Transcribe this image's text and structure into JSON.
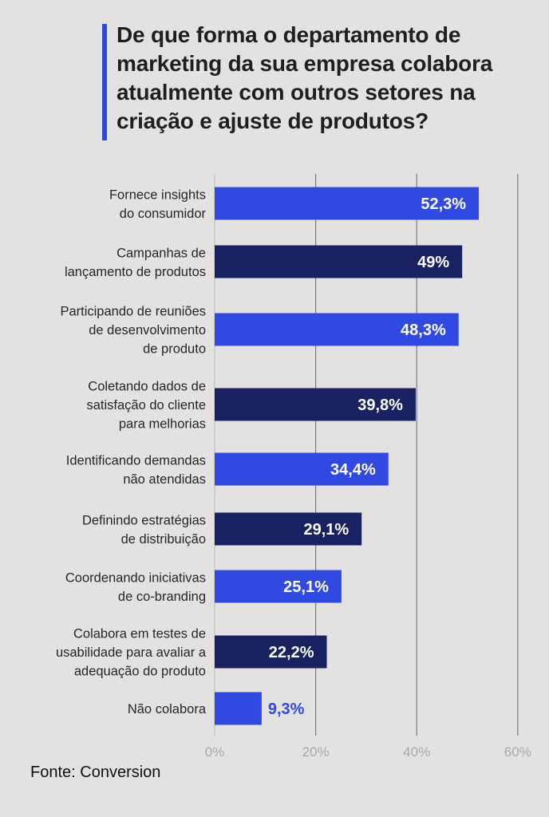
{
  "title": "De que forma o departamento de marketing da sua empresa colabora atualmente com outros setores na criação e ajuste de produtos?",
  "source": "Fonte: Conversion",
  "colors": {
    "bright": "#3049e3",
    "dark": "#182260",
    "background": "#e4e2e0",
    "accent_bar": "#2f48d8"
  },
  "chart_data": {
    "type": "bar",
    "orientation": "horizontal",
    "categories": [
      [
        "Fornece insights",
        "do consumidor"
      ],
      [
        "Campanhas de",
        "lançamento de produtos"
      ],
      [
        "Participando de reuniões",
        "de desenvolvimento",
        "de produto"
      ],
      [
        "Coletando dados de",
        "satisfação do cliente",
        "para melhorias"
      ],
      [
        "Identificando demandas",
        "não atendidas"
      ],
      [
        "Definindo estratégias",
        "de distribuição"
      ],
      [
        "Coordenando iniciativas",
        "de co-branding"
      ],
      [
        "Colabora em testes de",
        "usabilidade para avaliar a",
        "adequação do produto"
      ],
      [
        "Não colabora"
      ]
    ],
    "values": [
      52.3,
      49,
      48.3,
      39.8,
      34.4,
      29.1,
      25.1,
      22.2,
      9.3
    ],
    "value_labels": [
      "52,3%",
      "49%",
      "48,3%",
      "39,8%",
      "34,4%",
      "29,1%",
      "25,1%",
      "22,2%",
      "9,3%"
    ],
    "bar_colors": [
      "bright",
      "dark",
      "bright",
      "dark",
      "bright",
      "dark",
      "bright",
      "dark",
      "bright"
    ],
    "xlim": [
      0,
      60
    ],
    "ticks": [
      0,
      20,
      40,
      60
    ],
    "tick_labels": [
      "0%",
      "20%",
      "40%",
      "60%"
    ],
    "grid": true
  }
}
